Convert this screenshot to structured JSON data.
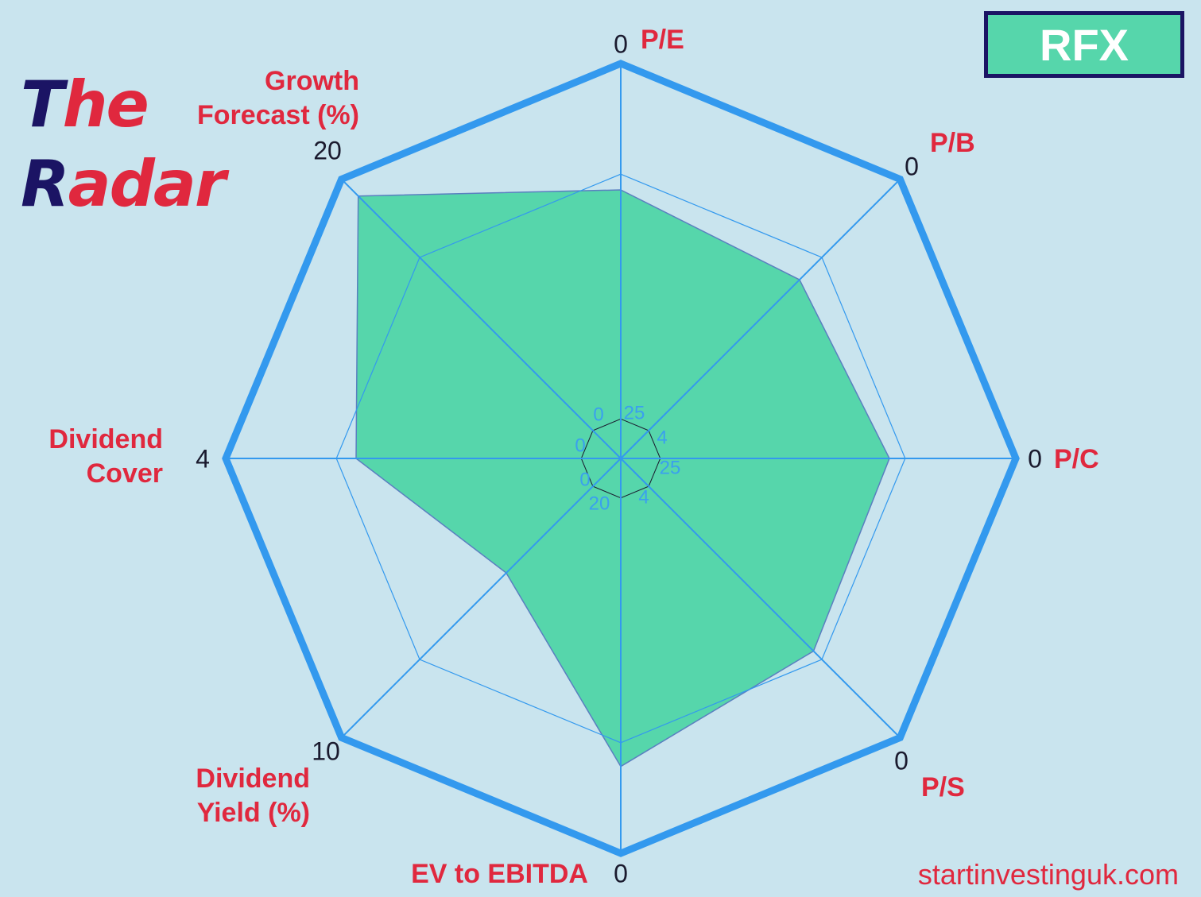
{
  "brand": {
    "word1_first": "T",
    "word1_rest": "he",
    "word2_first": "R",
    "word2_rest": "adar"
  },
  "ticker": "RFX",
  "footer": "startinvestinguk.com",
  "colors": {
    "background": "#c9e4ee",
    "frame": "#3399ee",
    "fill": "#56d6ab",
    "label": "#e0283e",
    "brand_dark": "#1b1464"
  },
  "chart_data": {
    "type": "radar",
    "axes": [
      {
        "label": [
          "P/E"
        ],
        "outer_tick": "0",
        "inner_tick": "25"
      },
      {
        "label": [
          "P/B"
        ],
        "outer_tick": "0",
        "inner_tick": "4"
      },
      {
        "label": [
          "P/C"
        ],
        "outer_tick": "0",
        "inner_tick": "25"
      },
      {
        "label": [
          "P/S"
        ],
        "outer_tick": "0",
        "inner_tick": "4"
      },
      {
        "label": [
          "EV to EBITDA"
        ],
        "outer_tick": "0",
        "inner_tick": "20"
      },
      {
        "label": [
          "Dividend",
          "Yield (%)"
        ],
        "outer_tick": "10",
        "inner_tick": "0"
      },
      {
        "label": [
          "Dividend",
          "Cover"
        ],
        "outer_tick": "4",
        "inner_tick": "0"
      },
      {
        "label": [
          "Growth",
          "Forecast (%)"
        ],
        "outer_tick": "20",
        "inner_tick": "0"
      }
    ],
    "values": [
      0.68,
      0.64,
      0.68,
      0.69,
      0.78,
      0.41,
      0.67,
      0.94
    ],
    "reference_ring": 0.72,
    "inner_ring": 0.1
  }
}
